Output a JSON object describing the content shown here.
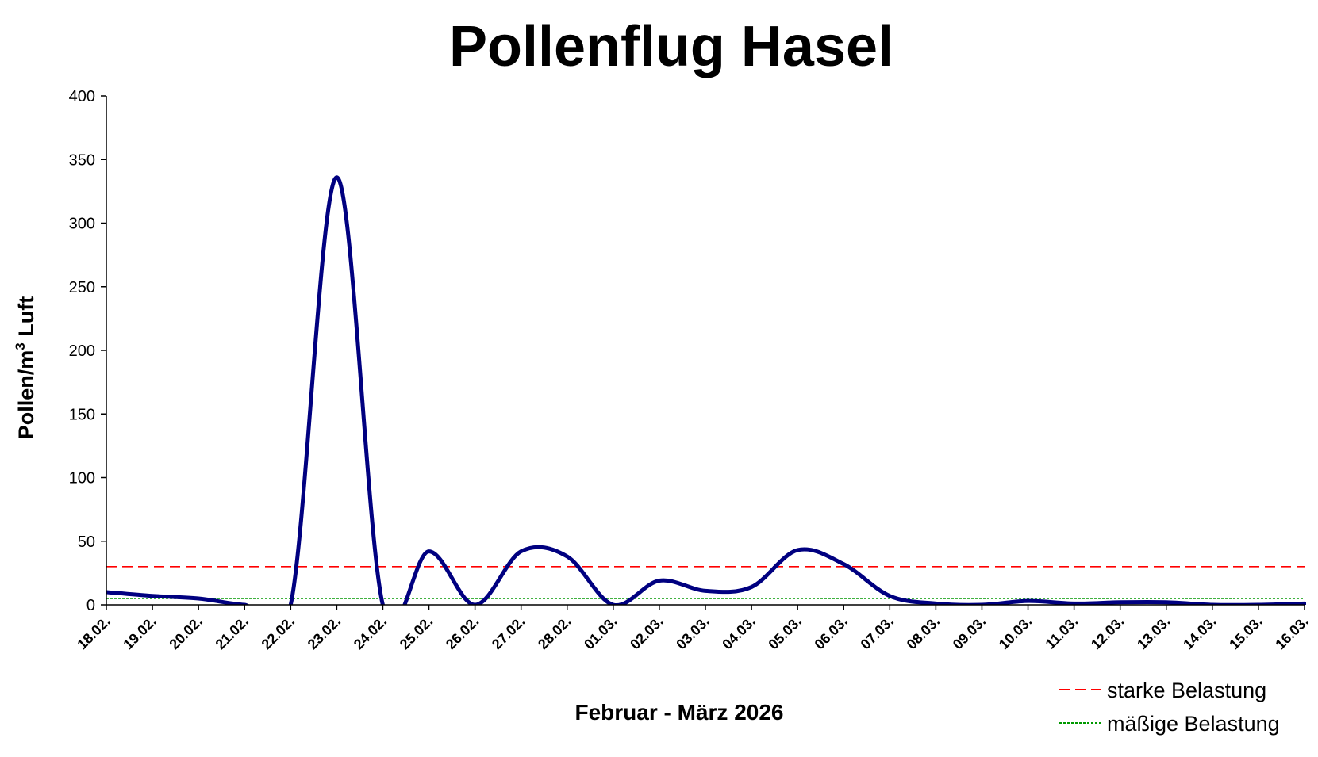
{
  "chart_data": {
    "type": "line",
    "title": "Pollenflug Hasel",
    "xlabel": "Februar  - März 2026",
    "ylabel_main": "Pollen/m",
    "ylabel_sup": "3",
    "ylabel_tail": " Luft",
    "ylim": [
      0,
      400
    ],
    "yticks": [
      "0",
      "50",
      "100",
      "150",
      "200",
      "250",
      "300",
      "350",
      "400"
    ],
    "ytick_values": [
      0,
      50,
      100,
      150,
      200,
      250,
      300,
      350,
      400
    ],
    "categories": [
      "18.02.",
      "19.02.",
      "20.02.",
      "21.02.",
      "22.02.",
      "23.02.",
      "24.02.",
      "25.02.",
      "26.02.",
      "27.02.",
      "28.02.",
      "01.03.",
      "02.03.",
      "03.03.",
      "04.03.",
      "05.03.",
      "06.03.",
      "07.03.",
      "08.03.",
      "09.03.",
      "10.03.",
      "11.03.",
      "12.03.",
      "13.03.",
      "14.03.",
      "15.03.",
      "16.03."
    ],
    "series": [
      {
        "values": [
          10,
          7,
          5,
          0,
          0,
          336,
          0,
          42,
          0,
          42,
          38,
          0,
          19,
          11,
          14,
          43,
          32,
          7,
          1,
          0,
          3,
          1,
          2,
          2,
          0,
          0,
          1
        ],
        "color": "#000080"
      }
    ],
    "reference_lines": [
      {
        "name": "starke Belastung",
        "value": 30,
        "color": "#ff0000",
        "style": "dashed"
      },
      {
        "name": "mäßige Belastung",
        "value": 5,
        "color": "#009900",
        "style": "dotted"
      }
    ],
    "grid": false,
    "legend": "bottom-right"
  }
}
